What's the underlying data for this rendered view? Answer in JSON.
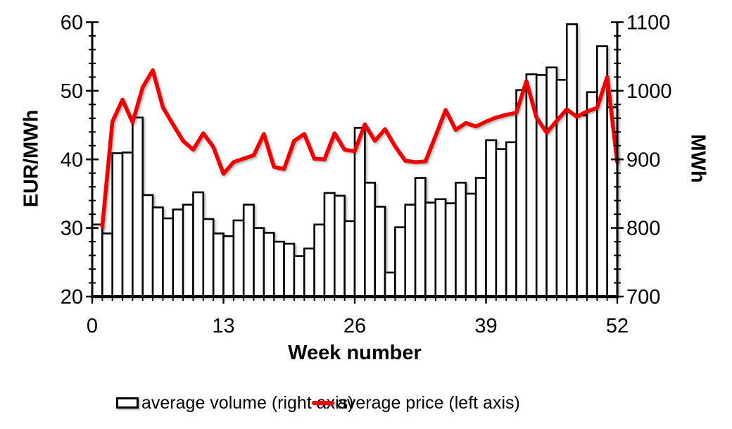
{
  "chart_data": {
    "type": "bar",
    "subtype": "dual-axis bar+line combo",
    "xlabel": "Week number",
    "ylabel_left": "EUR/MWh",
    "ylabel_right": "MWh",
    "x_range": [
      0,
      52
    ],
    "x_major_ticks": [
      0,
      13,
      26,
      39,
      52
    ],
    "x_minor_step": 1,
    "left_axis": {
      "range": [
        20,
        60
      ],
      "major_ticks": [
        20,
        30,
        40,
        50,
        60
      ],
      "minor_step": 2
    },
    "right_axis": {
      "range": [
        700,
        1100
      ],
      "major_ticks": [
        700,
        800,
        900,
        1000,
        1100
      ],
      "minor_step": 20
    },
    "grid": false,
    "legend_position": "bottom",
    "weeks": [
      1,
      2,
      3,
      4,
      5,
      6,
      7,
      8,
      9,
      10,
      11,
      12,
      13,
      14,
      15,
      16,
      17,
      18,
      19,
      20,
      21,
      22,
      23,
      24,
      25,
      26,
      27,
      28,
      29,
      30,
      31,
      32,
      33,
      34,
      35,
      36,
      37,
      38,
      39,
      40,
      41,
      42,
      43,
      44,
      45,
      46,
      47,
      48,
      49,
      50,
      51,
      52
    ],
    "series": [
      {
        "name": "average volume (right axis)",
        "type": "bar",
        "axis": "right",
        "unit": "MWh",
        "values": [
          805,
          792,
          909,
          910,
          961,
          848,
          830,
          814,
          827,
          834,
          852,
          813,
          792,
          788,
          811,
          834,
          800,
          793,
          780,
          777,
          759,
          770,
          805,
          851,
          847,
          810,
          946,
          866,
          831,
          735,
          801,
          834,
          873,
          837,
          842,
          836,
          866,
          850,
          873,
          928,
          915,
          925,
          1001,
          1024,
          1023,
          1034,
          1016,
          1097,
          964,
          998,
          1065,
          976
        ]
      },
      {
        "name": "average price (left axis)",
        "type": "line",
        "axis": "left",
        "unit": "EUR/MWh",
        "values": [
          30.2,
          45.5,
          48.7,
          45.4,
          50.5,
          53.0,
          47.6,
          45.1,
          42.7,
          41.4,
          43.8,
          41.8,
          37.9,
          39.6,
          40.1,
          40.6,
          43.7,
          38.9,
          38.6,
          42.7,
          43.7,
          40.1,
          40.0,
          43.8,
          41.4,
          41.2,
          45.1,
          42.7,
          44.4,
          41.9,
          39.8,
          39.6,
          39.7,
          43.4,
          47.2,
          44.3,
          45.3,
          44.8,
          45.5,
          46.1,
          46.5,
          46.8,
          51.4,
          46.1,
          43.9,
          45.6,
          47.3,
          46.2,
          47.0,
          47.5,
          52.0,
          39.6
        ]
      }
    ],
    "colors": {
      "line": "#ee0000",
      "bar_fill": "#ffffff",
      "bar_stroke": "#000000",
      "axis": "#000000"
    }
  },
  "titles": {
    "x_axis": "Week number",
    "y_axis_left": "EUR/MWh",
    "y_axis_right": "MWh"
  },
  "legend": {
    "volume_label": "average volume (right axis)",
    "price_label": "average price (left axis)"
  }
}
